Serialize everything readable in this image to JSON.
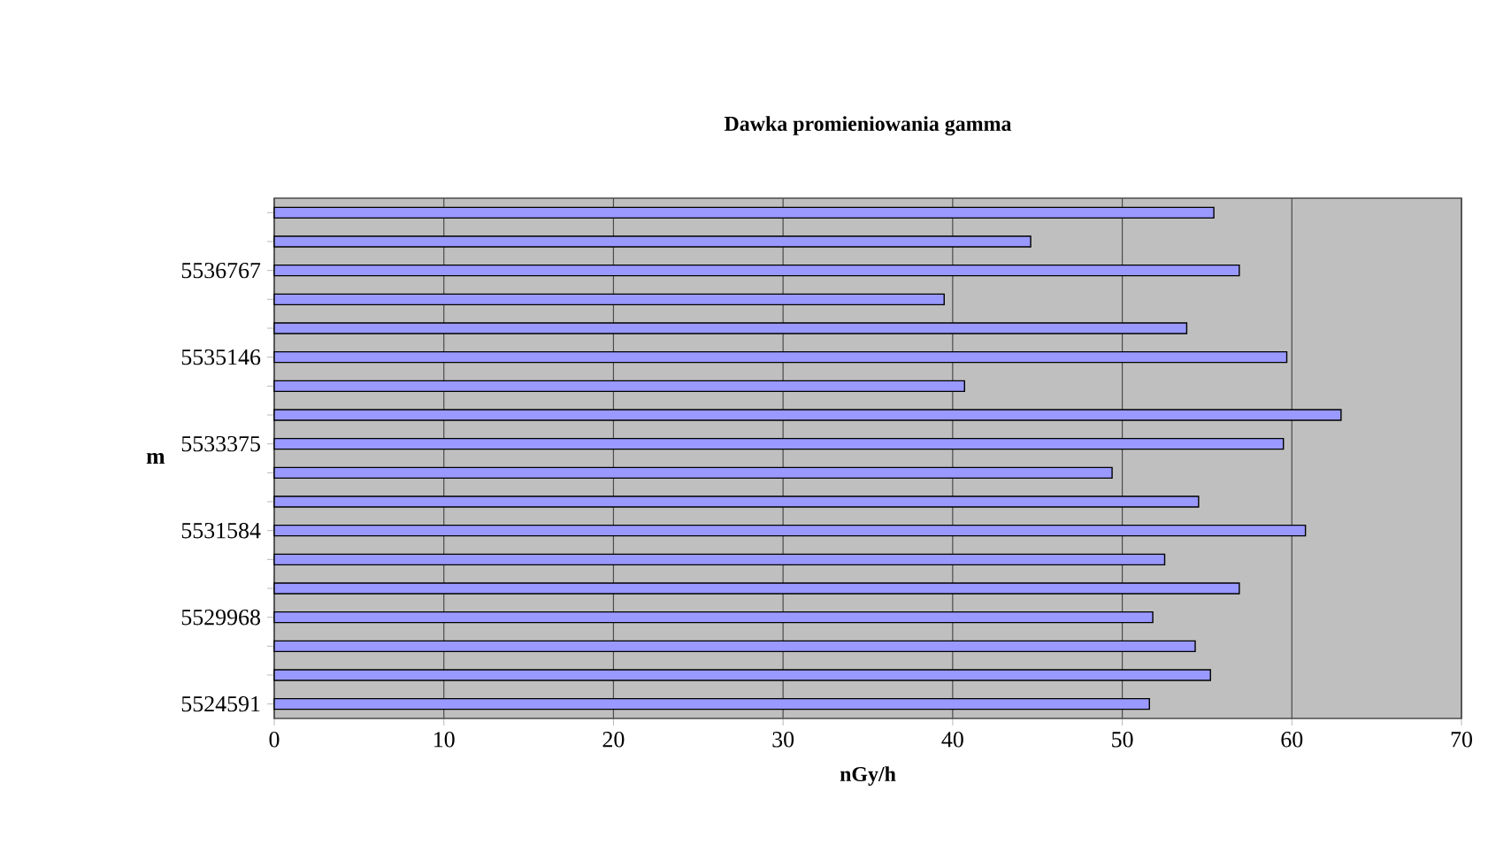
{
  "chart_data": {
    "type": "bar",
    "orientation": "horizontal",
    "title": "Dawka promieniowania gamma",
    "xlabel": "nGy/h",
    "ylabel": "m",
    "categories": [
      null,
      null,
      "5536767",
      null,
      null,
      "5535146",
      null,
      null,
      "5533375",
      null,
      null,
      "5531584",
      null,
      null,
      "5529968",
      null,
      null,
      "5524591"
    ],
    "values": [
      55.4,
      44.6,
      56.9,
      39.5,
      53.8,
      59.7,
      40.7,
      62.9,
      59.5,
      49.4,
      54.5,
      60.8,
      52.5,
      56.9,
      51.8,
      54.3,
      55.2,
      51.6
    ],
    "color": "#9999ff",
    "xlim": [
      0,
      70
    ],
    "xticks": [
      0,
      10,
      20,
      30,
      40,
      50,
      60,
      70
    ],
    "grid": "x"
  }
}
